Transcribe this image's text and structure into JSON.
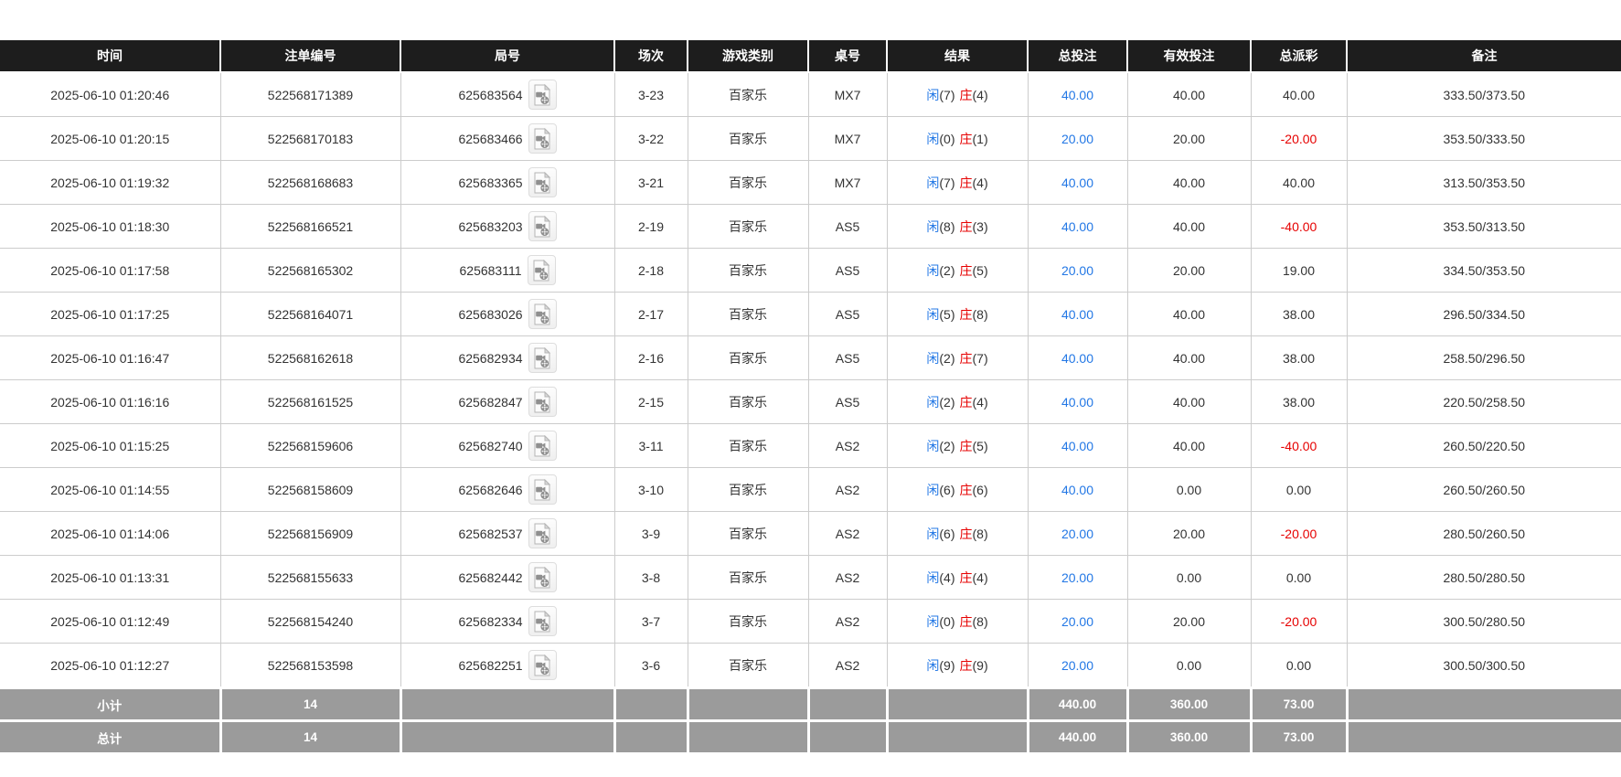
{
  "labels": {
    "player": "闲",
    "banker": "庄"
  },
  "colors": {
    "accent_blue": "#2277e5",
    "accent_red": "#e60000",
    "header_bg": "#1d1d1d",
    "footer_bg": "#9b9b9b"
  },
  "icons": {
    "round_video": "video-replay-icon"
  },
  "table": {
    "columns": [
      "时间",
      "注单编号",
      "局号",
      "场次",
      "游戏类别",
      "桌号",
      "结果",
      "总投注",
      "有效投注",
      "总派彩",
      "备注"
    ],
    "rows": [
      {
        "time": "2025-06-10 01:20:46",
        "bet_id": "522568171389",
        "round_no": "625683564",
        "session": "3-23",
        "game_type": "百家乐",
        "table_no": "MX7",
        "result": {
          "player": "7",
          "banker": "4"
        },
        "total_bet": "40.00",
        "valid_bet": "40.00",
        "payout": "40.00",
        "remark": "333.50/373.50"
      },
      {
        "time": "2025-06-10 01:20:15",
        "bet_id": "522568170183",
        "round_no": "625683466",
        "session": "3-22",
        "game_type": "百家乐",
        "table_no": "MX7",
        "result": {
          "player": "0",
          "banker": "1"
        },
        "total_bet": "20.00",
        "valid_bet": "20.00",
        "payout": "-20.00",
        "remark": "353.50/333.50"
      },
      {
        "time": "2025-06-10 01:19:32",
        "bet_id": "522568168683",
        "round_no": "625683365",
        "session": "3-21",
        "game_type": "百家乐",
        "table_no": "MX7",
        "result": {
          "player": "7",
          "banker": "4"
        },
        "total_bet": "40.00",
        "valid_bet": "40.00",
        "payout": "40.00",
        "remark": "313.50/353.50"
      },
      {
        "time": "2025-06-10 01:18:30",
        "bet_id": "522568166521",
        "round_no": "625683203",
        "session": "2-19",
        "game_type": "百家乐",
        "table_no": "AS5",
        "result": {
          "player": "8",
          "banker": "3"
        },
        "total_bet": "40.00",
        "valid_bet": "40.00",
        "payout": "-40.00",
        "remark": "353.50/313.50"
      },
      {
        "time": "2025-06-10 01:17:58",
        "bet_id": "522568165302",
        "round_no": "625683111",
        "session": "2-18",
        "game_type": "百家乐",
        "table_no": "AS5",
        "result": {
          "player": "2",
          "banker": "5"
        },
        "total_bet": "20.00",
        "valid_bet": "20.00",
        "payout": "19.00",
        "remark": "334.50/353.50"
      },
      {
        "time": "2025-06-10 01:17:25",
        "bet_id": "522568164071",
        "round_no": "625683026",
        "session": "2-17",
        "game_type": "百家乐",
        "table_no": "AS5",
        "result": {
          "player": "5",
          "banker": "8"
        },
        "total_bet": "40.00",
        "valid_bet": "40.00",
        "payout": "38.00",
        "remark": "296.50/334.50"
      },
      {
        "time": "2025-06-10 01:16:47",
        "bet_id": "522568162618",
        "round_no": "625682934",
        "session": "2-16",
        "game_type": "百家乐",
        "table_no": "AS5",
        "result": {
          "player": "2",
          "banker": "7"
        },
        "total_bet": "40.00",
        "valid_bet": "40.00",
        "payout": "38.00",
        "remark": "258.50/296.50"
      },
      {
        "time": "2025-06-10 01:16:16",
        "bet_id": "522568161525",
        "round_no": "625682847",
        "session": "2-15",
        "game_type": "百家乐",
        "table_no": "AS5",
        "result": {
          "player": "2",
          "banker": "4"
        },
        "total_bet": "40.00",
        "valid_bet": "40.00",
        "payout": "38.00",
        "remark": "220.50/258.50"
      },
      {
        "time": "2025-06-10 01:15:25",
        "bet_id": "522568159606",
        "round_no": "625682740",
        "session": "3-11",
        "game_type": "百家乐",
        "table_no": "AS2",
        "result": {
          "player": "2",
          "banker": "5"
        },
        "total_bet": "40.00",
        "valid_bet": "40.00",
        "payout": "-40.00",
        "remark": "260.50/220.50"
      },
      {
        "time": "2025-06-10 01:14:55",
        "bet_id": "522568158609",
        "round_no": "625682646",
        "session": "3-10",
        "game_type": "百家乐",
        "table_no": "AS2",
        "result": {
          "player": "6",
          "banker": "6"
        },
        "total_bet": "40.00",
        "valid_bet": "0.00",
        "payout": "0.00",
        "remark": "260.50/260.50"
      },
      {
        "time": "2025-06-10 01:14:06",
        "bet_id": "522568156909",
        "round_no": "625682537",
        "session": "3-9",
        "game_type": "百家乐",
        "table_no": "AS2",
        "result": {
          "player": "6",
          "banker": "8"
        },
        "total_bet": "20.00",
        "valid_bet": "20.00",
        "payout": "-20.00",
        "remark": "280.50/260.50"
      },
      {
        "time": "2025-06-10 01:13:31",
        "bet_id": "522568155633",
        "round_no": "625682442",
        "session": "3-8",
        "game_type": "百家乐",
        "table_no": "AS2",
        "result": {
          "player": "4",
          "banker": "4"
        },
        "total_bet": "20.00",
        "valid_bet": "0.00",
        "payout": "0.00",
        "remark": "280.50/280.50"
      },
      {
        "time": "2025-06-10 01:12:49",
        "bet_id": "522568154240",
        "round_no": "625682334",
        "session": "3-7",
        "game_type": "百家乐",
        "table_no": "AS2",
        "result": {
          "player": "0",
          "banker": "8"
        },
        "total_bet": "20.00",
        "valid_bet": "20.00",
        "payout": "-20.00",
        "remark": "300.50/280.50"
      },
      {
        "time": "2025-06-10 01:12:27",
        "bet_id": "522568153598",
        "round_no": "625682251",
        "session": "3-6",
        "game_type": "百家乐",
        "table_no": "AS2",
        "result": {
          "player": "9",
          "banker": "9"
        },
        "total_bet": "20.00",
        "valid_bet": "0.00",
        "payout": "0.00",
        "remark": "300.50/300.50"
      }
    ],
    "footer": [
      {
        "label": "小计",
        "count": "14",
        "total_bet": "440.00",
        "valid_bet": "360.00",
        "payout": "73.00",
        "remark": ""
      },
      {
        "label": "总计",
        "count": "14",
        "total_bet": "440.00",
        "valid_bet": "360.00",
        "payout": "73.00",
        "remark": ""
      }
    ]
  }
}
